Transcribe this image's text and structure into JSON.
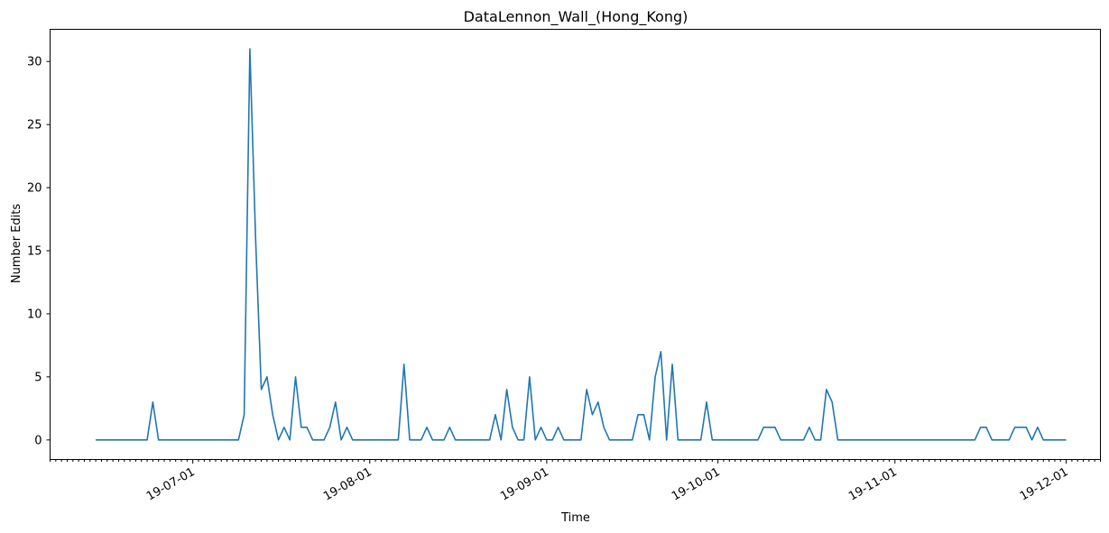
{
  "chart_data": {
    "type": "line",
    "title": "DataLennon_Wall_(Hong_Kong)",
    "xlabel": "Time",
    "ylabel": "Number Edits",
    "ylim": [
      -1.55,
      32.55
    ],
    "xlim": [
      "2019-06-06",
      "2019-12-07"
    ],
    "x_major_ticks": [
      "2019-07-01",
      "2019-08-01",
      "2019-09-01",
      "2019-10-01",
      "2019-11-01",
      "2019-12-01"
    ],
    "x_major_tick_labels": [
      "19-07-01",
      "19-08-01",
      "19-09-01",
      "19-10-01",
      "19-11-01",
      "19-12-01"
    ],
    "y_ticks": [
      0,
      5,
      10,
      15,
      20,
      25,
      30
    ],
    "y_tick_labels": [
      "0",
      "5",
      "10",
      "15",
      "20",
      "25",
      "30"
    ],
    "grid": false,
    "series": [
      {
        "color": "#1f77b4",
        "points": [
          [
            "2019-06-14",
            0
          ],
          [
            "2019-06-23",
            0
          ],
          [
            "2019-06-24",
            3
          ],
          [
            "2019-06-25",
            0
          ],
          [
            "2019-07-09",
            0
          ],
          [
            "2019-07-10",
            2
          ],
          [
            "2019-07-11",
            31
          ],
          [
            "2019-07-12",
            16
          ],
          [
            "2019-07-13",
            4
          ],
          [
            "2019-07-14",
            5
          ],
          [
            "2019-07-15",
            2
          ],
          [
            "2019-07-16",
            0
          ],
          [
            "2019-07-17",
            1
          ],
          [
            "2019-07-18",
            0
          ],
          [
            "2019-07-19",
            5
          ],
          [
            "2019-07-20",
            1
          ],
          [
            "2019-07-21",
            1
          ],
          [
            "2019-07-22",
            0
          ],
          [
            "2019-07-24",
            0
          ],
          [
            "2019-07-25",
            1
          ],
          [
            "2019-07-26",
            3
          ],
          [
            "2019-07-27",
            0
          ],
          [
            "2019-07-28",
            1
          ],
          [
            "2019-07-29",
            0
          ],
          [
            "2019-08-06",
            0
          ],
          [
            "2019-08-07",
            6
          ],
          [
            "2019-08-08",
            0
          ],
          [
            "2019-08-10",
            0
          ],
          [
            "2019-08-11",
            1
          ],
          [
            "2019-08-12",
            0
          ],
          [
            "2019-08-14",
            0
          ],
          [
            "2019-08-15",
            1
          ],
          [
            "2019-08-16",
            0
          ],
          [
            "2019-08-22",
            0
          ],
          [
            "2019-08-23",
            2
          ],
          [
            "2019-08-24",
            0
          ],
          [
            "2019-08-25",
            4
          ],
          [
            "2019-08-26",
            1
          ],
          [
            "2019-08-27",
            0
          ],
          [
            "2019-08-28",
            0
          ],
          [
            "2019-08-29",
            5
          ],
          [
            "2019-08-30",
            0
          ],
          [
            "2019-08-31",
            1
          ],
          [
            "2019-09-01",
            0
          ],
          [
            "2019-09-02",
            0
          ],
          [
            "2019-09-03",
            1
          ],
          [
            "2019-09-04",
            0
          ],
          [
            "2019-09-07",
            0
          ],
          [
            "2019-09-08",
            4
          ],
          [
            "2019-09-09",
            2
          ],
          [
            "2019-09-10",
            3
          ],
          [
            "2019-09-11",
            1
          ],
          [
            "2019-09-12",
            0
          ],
          [
            "2019-09-16",
            0
          ],
          [
            "2019-09-17",
            2
          ],
          [
            "2019-09-18",
            2
          ],
          [
            "2019-09-19",
            0
          ],
          [
            "2019-09-20",
            5
          ],
          [
            "2019-09-21",
            7
          ],
          [
            "2019-09-22",
            0
          ],
          [
            "2019-09-23",
            6
          ],
          [
            "2019-09-24",
            0
          ],
          [
            "2019-09-28",
            0
          ],
          [
            "2019-09-29",
            3
          ],
          [
            "2019-09-30",
            0
          ],
          [
            "2019-10-08",
            0
          ],
          [
            "2019-10-09",
            1
          ],
          [
            "2019-10-11",
            1
          ],
          [
            "2019-10-12",
            0
          ],
          [
            "2019-10-16",
            0
          ],
          [
            "2019-10-17",
            1
          ],
          [
            "2019-10-18",
            0
          ],
          [
            "2019-10-19",
            0
          ],
          [
            "2019-10-20",
            4
          ],
          [
            "2019-10-21",
            3
          ],
          [
            "2019-10-22",
            0
          ],
          [
            "2019-11-15",
            0
          ],
          [
            "2019-11-16",
            1
          ],
          [
            "2019-11-17",
            1
          ],
          [
            "2019-11-18",
            0
          ],
          [
            "2019-11-21",
            0
          ],
          [
            "2019-11-22",
            1
          ],
          [
            "2019-11-24",
            1
          ],
          [
            "2019-11-25",
            0
          ],
          [
            "2019-11-26",
            1
          ],
          [
            "2019-11-27",
            0
          ],
          [
            "2019-12-01",
            0
          ]
        ]
      }
    ]
  }
}
